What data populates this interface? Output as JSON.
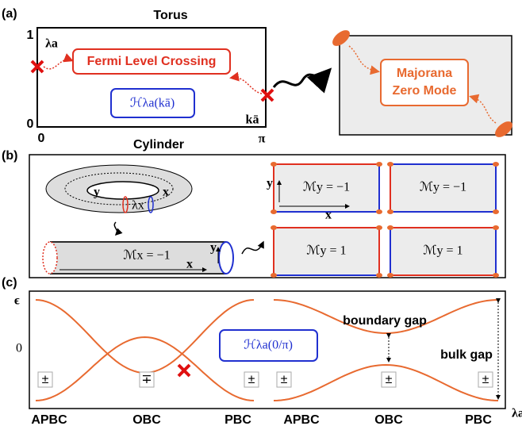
{
  "panels": {
    "a": {
      "label": "(a)",
      "title_top": "Torus",
      "title_bottom": "Cylinder",
      "y_top": "1",
      "y_bottom": "0",
      "x_left": "0",
      "x_right": "π",
      "y_label": "λa",
      "x_label": "kā",
      "box_crossing": "Fermi Level Crossing",
      "box_hamiltonian": "ℋλa(kā)",
      "box_majorana": [
        "Majorana",
        "Zero Mode"
      ]
    },
    "b": {
      "label": "(b)",
      "torus_y": "y",
      "torus_x": "x",
      "torus_lambda": "λx",
      "cylinder_mirror": "ℳx = −1",
      "cylinder_y": "y",
      "cylinder_x": "x",
      "rect_y": "y",
      "rect_x": "x",
      "mirrors": [
        "ℳy = −1",
        "ℳy = −1",
        "ℳy = 1",
        "ℳy = 1"
      ]
    },
    "c": {
      "label": "(c)",
      "y_label": "ϵ",
      "zero": "0",
      "hamiltonian": "ℋλa(0/π)",
      "boundary_gap": "boundary gap",
      "bulk_gap": "bulk gap",
      "x_label": "λa",
      "bc_labels": [
        "APBC",
        "OBC",
        "PBC",
        "APBC",
        "OBC",
        "PBC"
      ],
      "signs": [
        "±",
        "∓",
        "±",
        "±",
        "±",
        "±"
      ]
    }
  }
}
